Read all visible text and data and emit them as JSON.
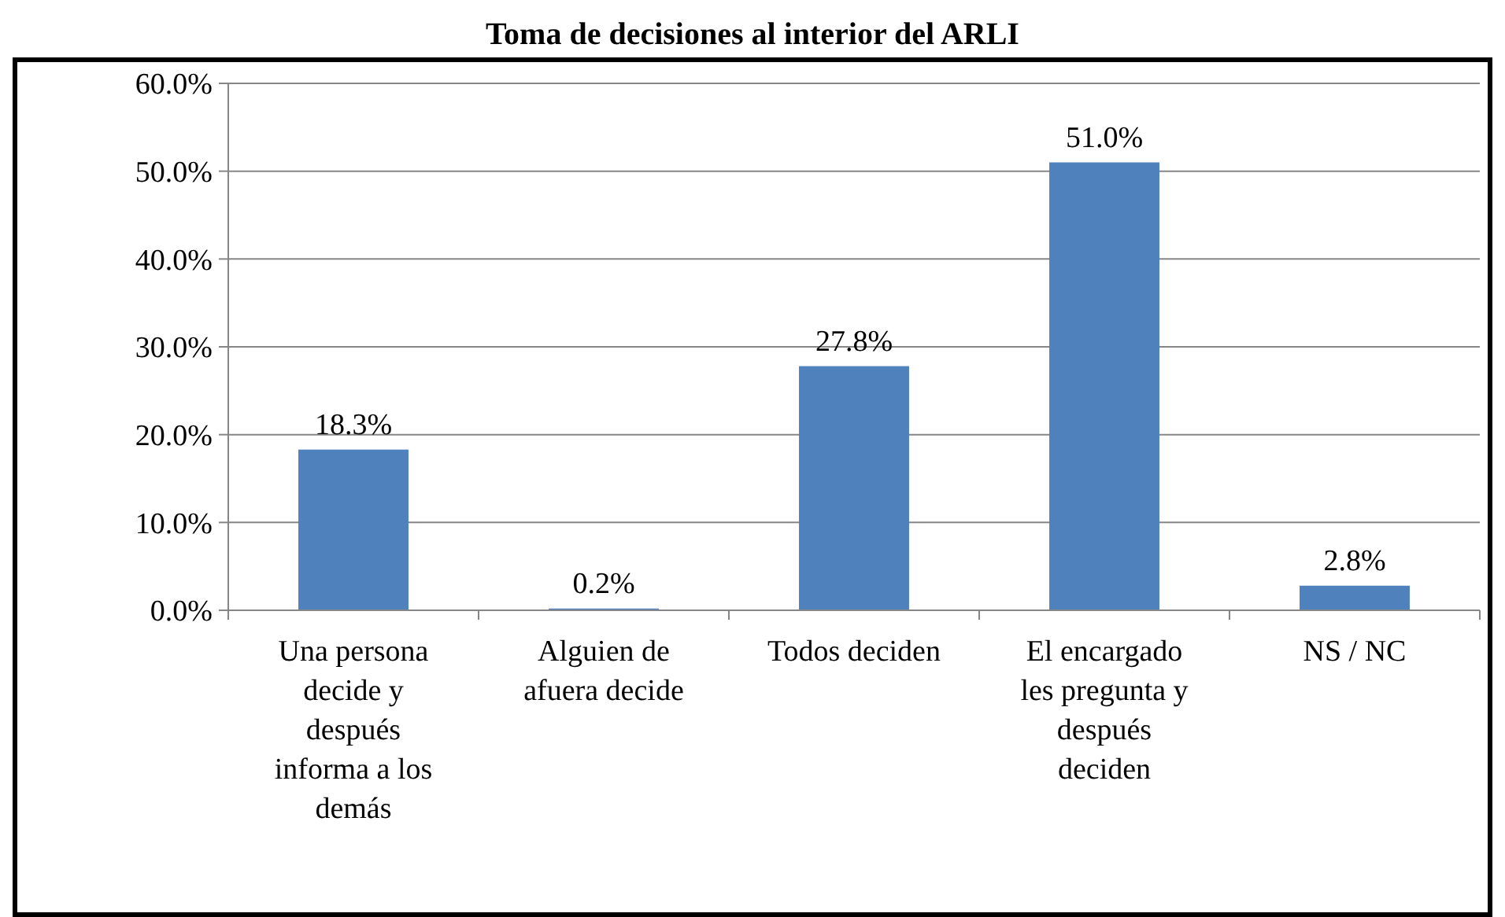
{
  "chart_data": {
    "type": "bar",
    "title": "Toma de decisiones al interior del ARLI",
    "categories": [
      "Una persona decide y después informa a los demás",
      "Alguien de afuera decide",
      "Todos deciden",
      "El encargado les pregunta y después deciden",
      "NS / NC"
    ],
    "values": [
      18.3,
      0.2,
      27.8,
      51.0,
      2.8
    ],
    "color": "#4f81bd",
    "value_labels": [
      "18.3%",
      "0.2%",
      "27.8%",
      "51.0%",
      "2.8%"
    ],
    "ylim": [
      0,
      60
    ],
    "yticks": [
      {
        "value": 0,
        "label": "0.0%"
      },
      {
        "value": 10,
        "label": "10.0%"
      },
      {
        "value": 20,
        "label": "20.0%"
      },
      {
        "value": 30,
        "label": "30.0%"
      },
      {
        "value": 40,
        "label": "40.0%"
      },
      {
        "value": 50,
        "label": "50.0%"
      },
      {
        "value": 60,
        "label": "60.0%"
      }
    ],
    "grid": "y"
  }
}
